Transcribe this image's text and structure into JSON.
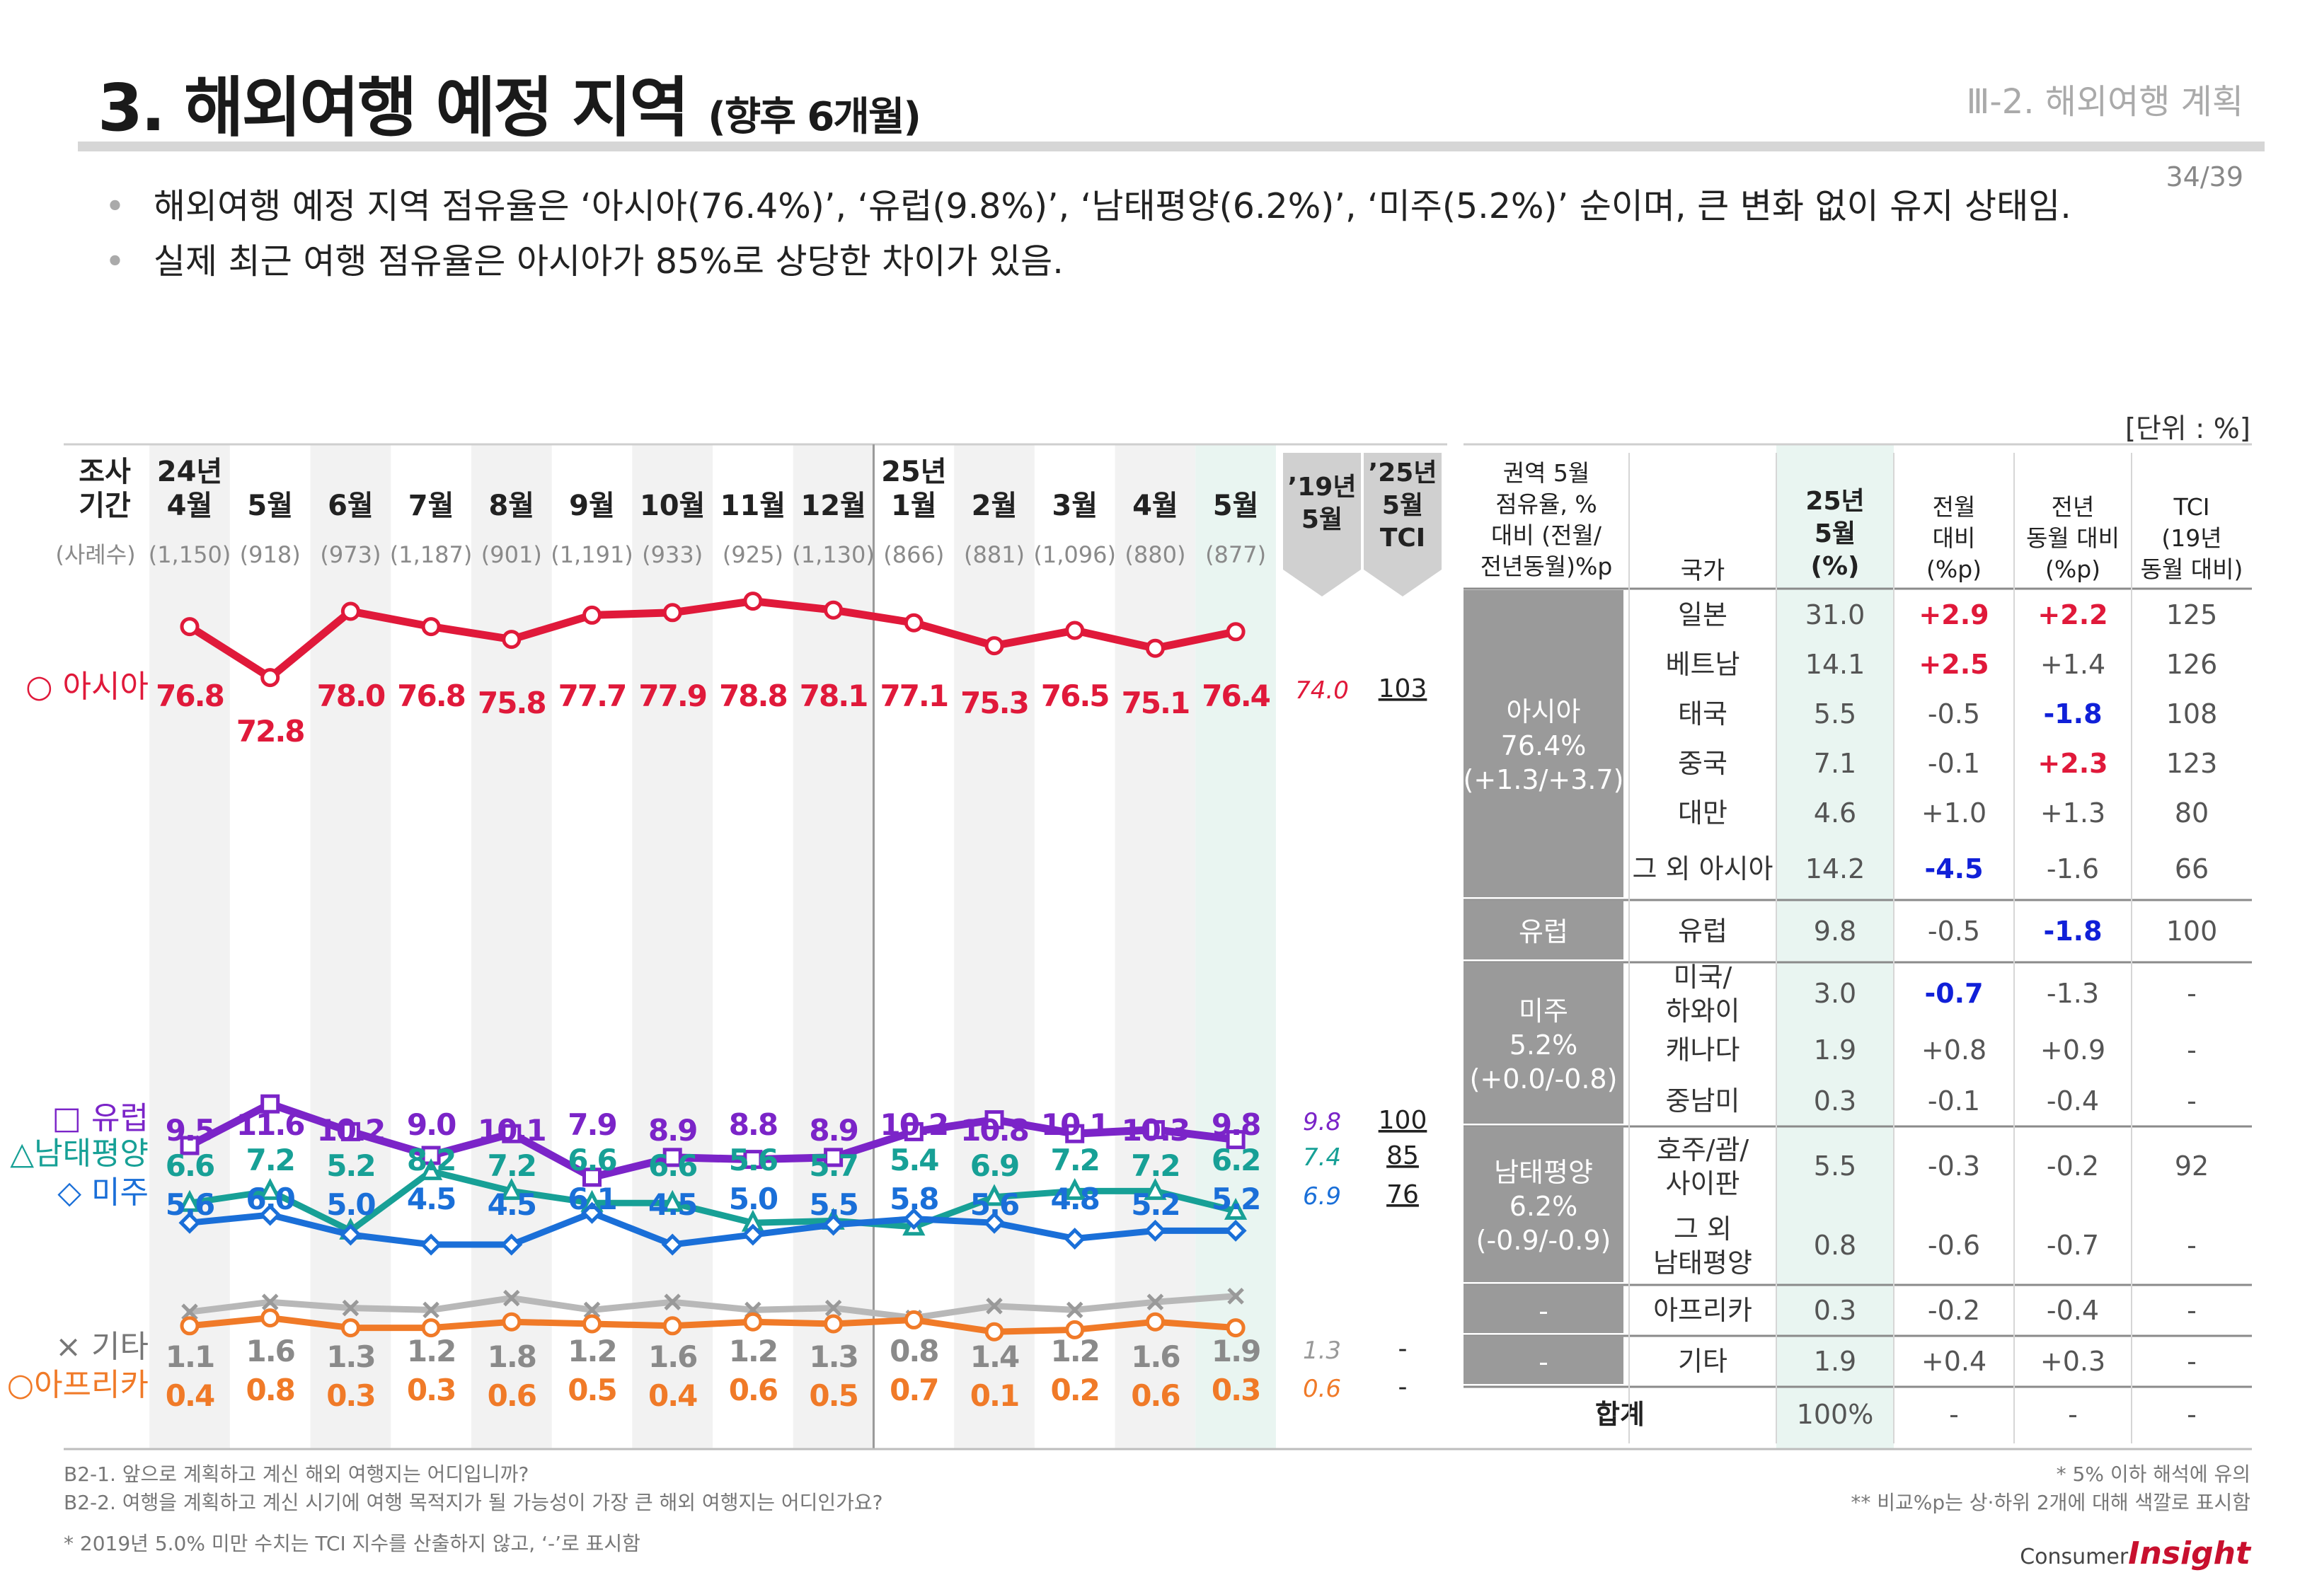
{
  "header": {
    "title": "3. 해외여행 예정 지역",
    "subtitle": "(향후 6개월)",
    "section": "Ⅲ-2. 해외여행 계획",
    "page": "34/39"
  },
  "bullets": [
    "해외여행 예정 지역 점유율은 ‘아시아(76.4%)’, ‘유럽(9.8%)’, ‘남태평양(6.2%)’, ‘미주(5.2%)’ 순이며, 큰 변화 없이 유지 상태임.",
    "실제 최근 여행 점유율은 아시아가 85%로 상당한 차이가 있음."
  ],
  "unit_label": "[단위 : %]",
  "chart_data": {
    "type": "line",
    "period_header": [
      "조사",
      "기간"
    ],
    "samples_header": "(사례수)",
    "periods": [
      {
        "year": "24년",
        "month": "4월",
        "n": "(1,150)"
      },
      {
        "year": "",
        "month": "5월",
        "n": "(918)"
      },
      {
        "year": "",
        "month": "6월",
        "n": "(973)"
      },
      {
        "year": "",
        "month": "7월",
        "n": "(1,187)"
      },
      {
        "year": "",
        "month": "8월",
        "n": "(901)"
      },
      {
        "year": "",
        "month": "9월",
        "n": "(1,191)"
      },
      {
        "year": "",
        "month": "10월",
        "n": "(933)"
      },
      {
        "year": "",
        "month": "11월",
        "n": "(925)"
      },
      {
        "year": "",
        "month": "12월",
        "n": "(1,130)"
      },
      {
        "year": "25년",
        "month": "1월",
        "n": "(866)"
      },
      {
        "year": "",
        "month": "2월",
        "n": "(881)"
      },
      {
        "year": "",
        "month": "3월",
        "n": "(1,096)"
      },
      {
        "year": "",
        "month": "4월",
        "n": "(880)"
      },
      {
        "year": "",
        "month": "5월",
        "n": "(877)"
      }
    ],
    "ref_header": [
      "’19년",
      "5월"
    ],
    "tci_header": [
      "’25년",
      "5월",
      "TCI"
    ],
    "series": [
      {
        "name": "아시아",
        "label": "○ 아시아",
        "marker": "circle",
        "color": "#e0193a",
        "values": [
          76.8,
          72.8,
          78.0,
          76.8,
          75.8,
          77.7,
          77.9,
          78.8,
          78.1,
          77.1,
          75.3,
          76.5,
          75.1,
          76.4
        ],
        "ref2019": "74.0",
        "tci": "103"
      },
      {
        "name": "유럽",
        "label": "□ 유럽",
        "marker": "square",
        "color": "#7b24c8",
        "values": [
          9.5,
          11.6,
          10.2,
          9.0,
          10.1,
          7.9,
          8.9,
          8.8,
          8.9,
          10.2,
          10.8,
          10.1,
          10.3,
          9.8
        ],
        "ref2019": "9.8",
        "tci": "100"
      },
      {
        "name": "남태평양",
        "label": "△남태평양",
        "marker": "triangle",
        "color": "#17a096",
        "values": [
          6.6,
          7.2,
          5.2,
          8.2,
          7.2,
          6.6,
          6.6,
          5.6,
          5.7,
          5.4,
          6.9,
          7.2,
          7.2,
          6.2
        ],
        "ref2019": "7.4",
        "tci": "85"
      },
      {
        "name": "미주",
        "label": "◇ 미주",
        "marker": "diamond",
        "color": "#1a6fd8",
        "values": [
          5.6,
          6.0,
          5.0,
          4.5,
          4.5,
          6.1,
          4.5,
          5.0,
          5.5,
          5.8,
          5.6,
          4.8,
          5.2,
          5.2
        ],
        "ref2019": "6.9",
        "tci": "76"
      },
      {
        "name": "기타",
        "label": "× 기타",
        "marker": "x",
        "color": "#b8b8b8",
        "values": [
          1.1,
          1.6,
          1.3,
          1.2,
          1.8,
          1.2,
          1.6,
          1.2,
          1.3,
          0.8,
          1.4,
          1.2,
          1.6,
          1.9
        ],
        "ref2019": "1.3",
        "tci": "-"
      },
      {
        "name": "아프리카",
        "label": "○아프리카",
        "marker": "circle",
        "color": "#f07a28",
        "values": [
          0.4,
          0.8,
          0.3,
          0.3,
          0.6,
          0.5,
          0.4,
          0.6,
          0.5,
          0.7,
          0.1,
          0.2,
          0.6,
          0.3
        ],
        "ref2019": "0.6",
        "tci": "-"
      }
    ]
  },
  "table": {
    "headers": [
      "권역 5월\n점유율, %\n대비 (전월/\n전년동월)%p",
      "국가",
      "25년\n5월\n(%)",
      "전월\n대비\n(%p)",
      "전년\n동월 대비\n(%p)",
      "TCI\n(19년\n동월 대비)"
    ],
    "groups": [
      {
        "region": "아시아\n76.4%\n(+1.3/+3.7)",
        "rows": [
          {
            "country": "일본",
            "share": "31.0",
            "mom": "+2.9",
            "mom_c": "up",
            "yoy": "+2.2",
            "yoy_c": "up",
            "tci": "125"
          },
          {
            "country": "베트남",
            "share": "14.1",
            "mom": "+2.5",
            "mom_c": "up",
            "yoy": "+1.4",
            "yoy_c": "",
            "tci": "126"
          },
          {
            "country": "태국",
            "share": "5.5",
            "mom": "-0.5",
            "mom_c": "",
            "yoy": "-1.8",
            "yoy_c": "down",
            "tci": "108"
          },
          {
            "country": "중국",
            "share": "7.1",
            "mom": "-0.1",
            "mom_c": "",
            "yoy": "+2.3",
            "yoy_c": "up",
            "tci": "123"
          },
          {
            "country": "대만",
            "share": "4.6",
            "mom": "+1.0",
            "mom_c": "",
            "yoy": "+1.3",
            "yoy_c": "",
            "tci": "80"
          },
          {
            "country": "그 외 아시아",
            "share": "14.2",
            "mom": "-4.5",
            "mom_c": "down",
            "yoy": "-1.6",
            "yoy_c": "",
            "tci": "66"
          }
        ]
      },
      {
        "region": "유럽",
        "rows": [
          {
            "country": "유럽",
            "share": "9.8",
            "mom": "-0.5",
            "mom_c": "",
            "yoy": "-1.8",
            "yoy_c": "down",
            "tci": "100"
          }
        ]
      },
      {
        "region": "미주\n5.2%\n(+0.0/-0.8)",
        "rows": [
          {
            "country": "미국/\n하와이",
            "share": "3.0",
            "mom": "-0.7",
            "mom_c": "down",
            "yoy": "-1.3",
            "yoy_c": "",
            "tci": "-"
          },
          {
            "country": "캐나다",
            "share": "1.9",
            "mom": "+0.8",
            "mom_c": "",
            "yoy": "+0.9",
            "yoy_c": "",
            "tci": "-"
          },
          {
            "country": "중남미",
            "share": "0.3",
            "mom": "-0.1",
            "mom_c": "",
            "yoy": "-0.4",
            "yoy_c": "",
            "tci": "-"
          }
        ]
      },
      {
        "region": "남태평양\n6.2%\n(-0.9/-0.9)",
        "rows": [
          {
            "country": "호주/괌/\n사이판",
            "share": "5.5",
            "mom": "-0.3",
            "mom_c": "",
            "yoy": "-0.2",
            "yoy_c": "",
            "tci": "92"
          },
          {
            "country": "그 외\n남태평양",
            "share": "0.8",
            "mom": "-0.6",
            "mom_c": "",
            "yoy": "-0.7",
            "yoy_c": "",
            "tci": "-"
          }
        ]
      },
      {
        "region": "-",
        "rows": [
          {
            "country": "아프리카",
            "share": "0.3",
            "mom": "-0.2",
            "mom_c": "",
            "yoy": "-0.4",
            "yoy_c": "",
            "tci": "-"
          }
        ]
      },
      {
        "region": "-",
        "rows": [
          {
            "country": "기타",
            "share": "1.9",
            "mom": "+0.4",
            "mom_c": "",
            "yoy": "+0.3",
            "yoy_c": "",
            "tci": "-"
          }
        ]
      }
    ],
    "total": {
      "label": "합계",
      "share": "100%",
      "mom": "-",
      "yoy": "-",
      "tci": "-"
    }
  },
  "footnotes": {
    "left": [
      "B2-1. 앞으로 계획하고 계신 해외 여행지는 어디입니까?",
      "B2-2. 여행을 계획하고 계신 시기에 여행 목적지가 될 가능성이 가장 큰 해외 여행지는 어디인가요?",
      "* 2019년 5.0% 미만 수치는 TCI 지수를 산출하지 않고, ‘-’로 표시함"
    ],
    "right": [
      "* 5% 이하 해석에 유의",
      "** 비교%p는 상·하위 2개에 대해 색깔로 표시함"
    ]
  },
  "logo": {
    "text1": "Consumer",
    "text2": "Insight"
  },
  "colors": {
    "up": "#e0193a",
    "down": "#1020d8",
    "region_bg": "#9a9a9a",
    "share_bg": "#e9f5f1",
    "stripe": "#f2f2f2",
    "ref_bg": "#d0d0d0"
  }
}
